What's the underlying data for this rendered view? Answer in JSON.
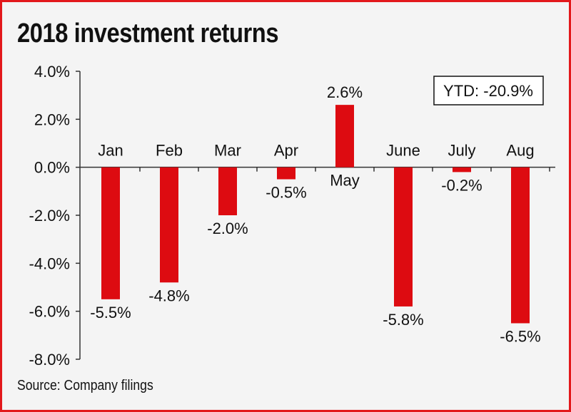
{
  "header": {
    "title": "2018 investment returns"
  },
  "footer": {
    "source": "Source: Company filings"
  },
  "colors": {
    "bar": "#dd0b11",
    "frame": "#e2181b",
    "background": "#f4f4f4",
    "axis": "#333333"
  },
  "chart_data": {
    "type": "bar",
    "title": "2018 investment returns",
    "categories": [
      "Jan",
      "Feb",
      "Mar",
      "Apr",
      "May",
      "June",
      "July",
      "Aug"
    ],
    "values": [
      -5.5,
      -4.8,
      -2.0,
      -0.5,
      2.6,
      -5.8,
      -0.2,
      -6.5
    ],
    "value_labels": [
      "-5.5%",
      "-4.8%",
      "-2.0%",
      "-0.5%",
      "2.6%",
      "-5.8%",
      "-0.2%",
      "-6.5%"
    ],
    "ylim": [
      -8,
      4
    ],
    "yticks": [
      4,
      2,
      0,
      -2,
      -4,
      -6,
      -8
    ],
    "ytick_labels": [
      "4.0%",
      "2.0%",
      "0.0%",
      "-2.0%",
      "-4.0%",
      "-6.0%",
      "-8.0%"
    ],
    "annotation": "YTD: -20.9%",
    "grid": false,
    "legend": "none"
  }
}
